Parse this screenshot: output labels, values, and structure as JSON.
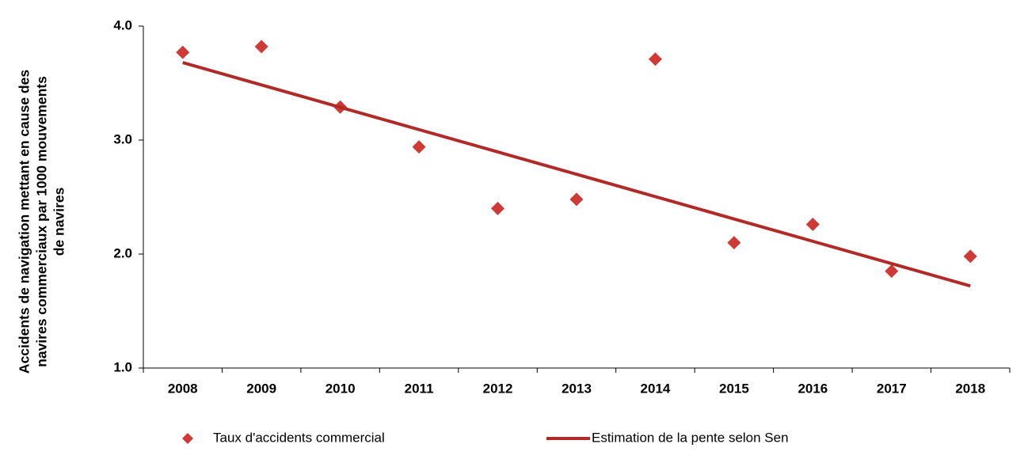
{
  "chart_data": {
    "type": "combo",
    "ylabel": [
      "Accidents de navigation mettant en cause des",
      "navires commerciaux par 1000 mouvements",
      "de navires"
    ],
    "categories": [
      "2008",
      "2009",
      "2010",
      "2011",
      "2012",
      "2013",
      "2014",
      "2015",
      "2016",
      "2017",
      "2018"
    ],
    "series": [
      {
        "name": "Taux d'accidents commercial",
        "type": "scatter",
        "color": "#d03a36",
        "values": [
          3.77,
          3.82,
          3.29,
          2.94,
          2.4,
          2.48,
          3.71,
          2.1,
          2.26,
          1.85,
          1.98
        ]
      },
      {
        "name": "Estimation de la pente selon Sen",
        "type": "line",
        "color": "#b02a28",
        "values": [
          3.68,
          3.484,
          3.288,
          3.092,
          2.896,
          2.7,
          2.504,
          2.308,
          2.112,
          1.916,
          1.72
        ]
      }
    ],
    "ylim": [
      1,
      4
    ],
    "yticks": [
      {
        "value": 1,
        "label": "1.0"
      },
      {
        "value": 2,
        "label": "2.0"
      },
      {
        "value": 3,
        "label": "3.0"
      },
      {
        "value": 4,
        "label": "4.0"
      }
    ],
    "grid": false,
    "legend": "bottom"
  }
}
